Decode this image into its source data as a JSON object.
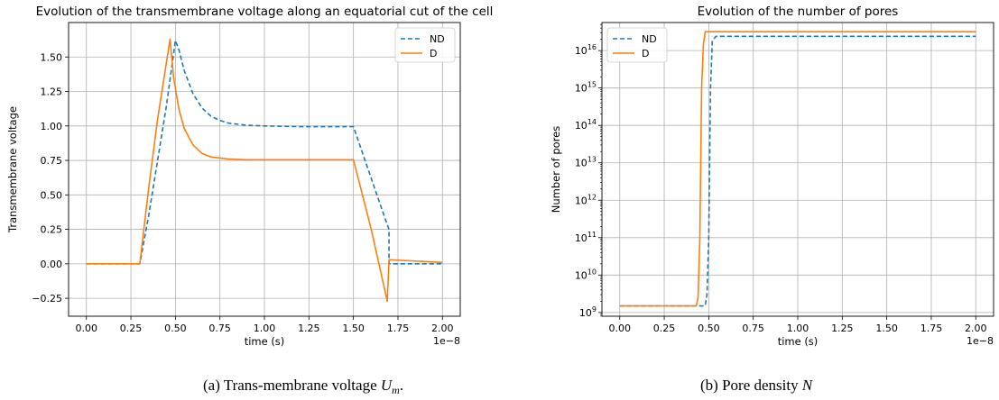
{
  "chart_data": [
    {
      "type": "line",
      "title": "Evolution of the transmembrane voltage along an equatorial cut of the cell",
      "xlabel": "time (s)",
      "ylabel": "Transmembrane voltage",
      "x_offset_label": "1e−8",
      "xlim": [
        -0.1,
        2.1
      ],
      "ylim": [
        -0.38,
        1.75
      ],
      "x_ticks": [
        0.0,
        0.25,
        0.5,
        0.75,
        1.0,
        1.25,
        1.5,
        1.75,
        2.0
      ],
      "x_tick_labels": [
        "0.00",
        "0.25",
        "0.50",
        "0.75",
        "1.00",
        "1.25",
        "1.50",
        "1.75",
        "2.00"
      ],
      "y_ticks": [
        -0.25,
        0.0,
        0.25,
        0.5,
        0.75,
        1.0,
        1.25,
        1.5
      ],
      "y_tick_labels": [
        "−0.25",
        "0.00",
        "0.25",
        "0.50",
        "0.75",
        "1.00",
        "1.25",
        "1.50"
      ],
      "grid": true,
      "legend_position": "top-right",
      "series": [
        {
          "name": "ND",
          "color": "#1f77b4",
          "style": "dashed",
          "x": [
            0.0,
            0.3,
            0.35,
            0.4,
            0.45,
            0.5,
            0.52,
            0.55,
            0.6,
            0.65,
            0.7,
            0.75,
            0.8,
            0.9,
            1.0,
            1.2,
            1.5,
            1.6,
            1.68,
            1.7,
            1.7,
            2.0
          ],
          "y": [
            0.0,
            0.0,
            0.35,
            0.75,
            1.15,
            1.62,
            1.55,
            1.4,
            1.23,
            1.13,
            1.07,
            1.04,
            1.02,
            1.005,
            1.0,
            0.995,
            0.995,
            0.62,
            0.32,
            0.25,
            0.0,
            0.0
          ]
        },
        {
          "name": "D",
          "color": "#ff7f0e",
          "style": "solid",
          "x": [
            0.0,
            0.3,
            0.35,
            0.4,
            0.47,
            0.49,
            0.52,
            0.55,
            0.6,
            0.65,
            0.7,
            0.8,
            0.9,
            1.0,
            1.2,
            1.5,
            1.6,
            1.69,
            1.7,
            2.0
          ],
          "y": [
            0.0,
            0.0,
            0.55,
            1.05,
            1.63,
            1.35,
            1.12,
            0.98,
            0.86,
            0.8,
            0.775,
            0.76,
            0.755,
            0.755,
            0.755,
            0.755,
            0.25,
            -0.27,
            0.03,
            0.01
          ]
        }
      ]
    },
    {
      "type": "line",
      "title": "Evolution of the number of pores",
      "xlabel": "time (s)",
      "ylabel": "Number of pores",
      "x_offset_label": "1e−8",
      "y_scale": "log",
      "xlim": [
        -0.1,
        2.1
      ],
      "ylim_log10": [
        8.9,
        16.75
      ],
      "x_ticks": [
        0.0,
        0.25,
        0.5,
        0.75,
        1.0,
        1.25,
        1.5,
        1.75,
        2.0
      ],
      "x_tick_labels": [
        "0.00",
        "0.25",
        "0.50",
        "0.75",
        "1.00",
        "1.25",
        "1.50",
        "1.75",
        "2.00"
      ],
      "y_ticks_log10": [
        9,
        10,
        11,
        12,
        13,
        14,
        15,
        16
      ],
      "y_tick_labels": [
        {
          "base": "10",
          "exp": "9"
        },
        {
          "base": "10",
          "exp": "10"
        },
        {
          "base": "10",
          "exp": "11"
        },
        {
          "base": "10",
          "exp": "12"
        },
        {
          "base": "10",
          "exp": "13"
        },
        {
          "base": "10",
          "exp": "14"
        },
        {
          "base": "10",
          "exp": "15"
        },
        {
          "base": "10",
          "exp": "16"
        }
      ],
      "grid": true,
      "legend_position": "top-left",
      "series": [
        {
          "name": "ND",
          "color": "#1f77b4",
          "style": "dashed",
          "x": [
            0.0,
            0.48,
            0.49,
            0.5,
            0.505,
            0.51,
            0.52,
            0.54,
            2.0
          ],
          "y": [
            1500000000.0,
            1500000000.0,
            3000000000.0,
            100000000000.0,
            10000000000000.0,
            1000000000000000.0,
            1.8e+16,
            2.4e+16,
            2.4e+16
          ]
        },
        {
          "name": "D",
          "color": "#ff7f0e",
          "style": "solid",
          "x": [
            0.0,
            0.43,
            0.44,
            0.45,
            0.455,
            0.46,
            0.47,
            0.48,
            0.5,
            2.0
          ],
          "y": [
            1500000000.0,
            1500000000.0,
            2500000000.0,
            100000000000.0,
            10000000000000.0,
            1000000000000000.0,
            1.5e+16,
            3.2e+16,
            3.2e+16,
            3.2e+16
          ]
        }
      ]
    }
  ],
  "captions": {
    "left": {
      "prefix": "(a) Trans-membrane voltage ",
      "var": "U",
      "sub": "m",
      "suffix": "."
    },
    "right": {
      "prefix": "(b) Pore density ",
      "var": "N",
      "suffix": ""
    }
  }
}
